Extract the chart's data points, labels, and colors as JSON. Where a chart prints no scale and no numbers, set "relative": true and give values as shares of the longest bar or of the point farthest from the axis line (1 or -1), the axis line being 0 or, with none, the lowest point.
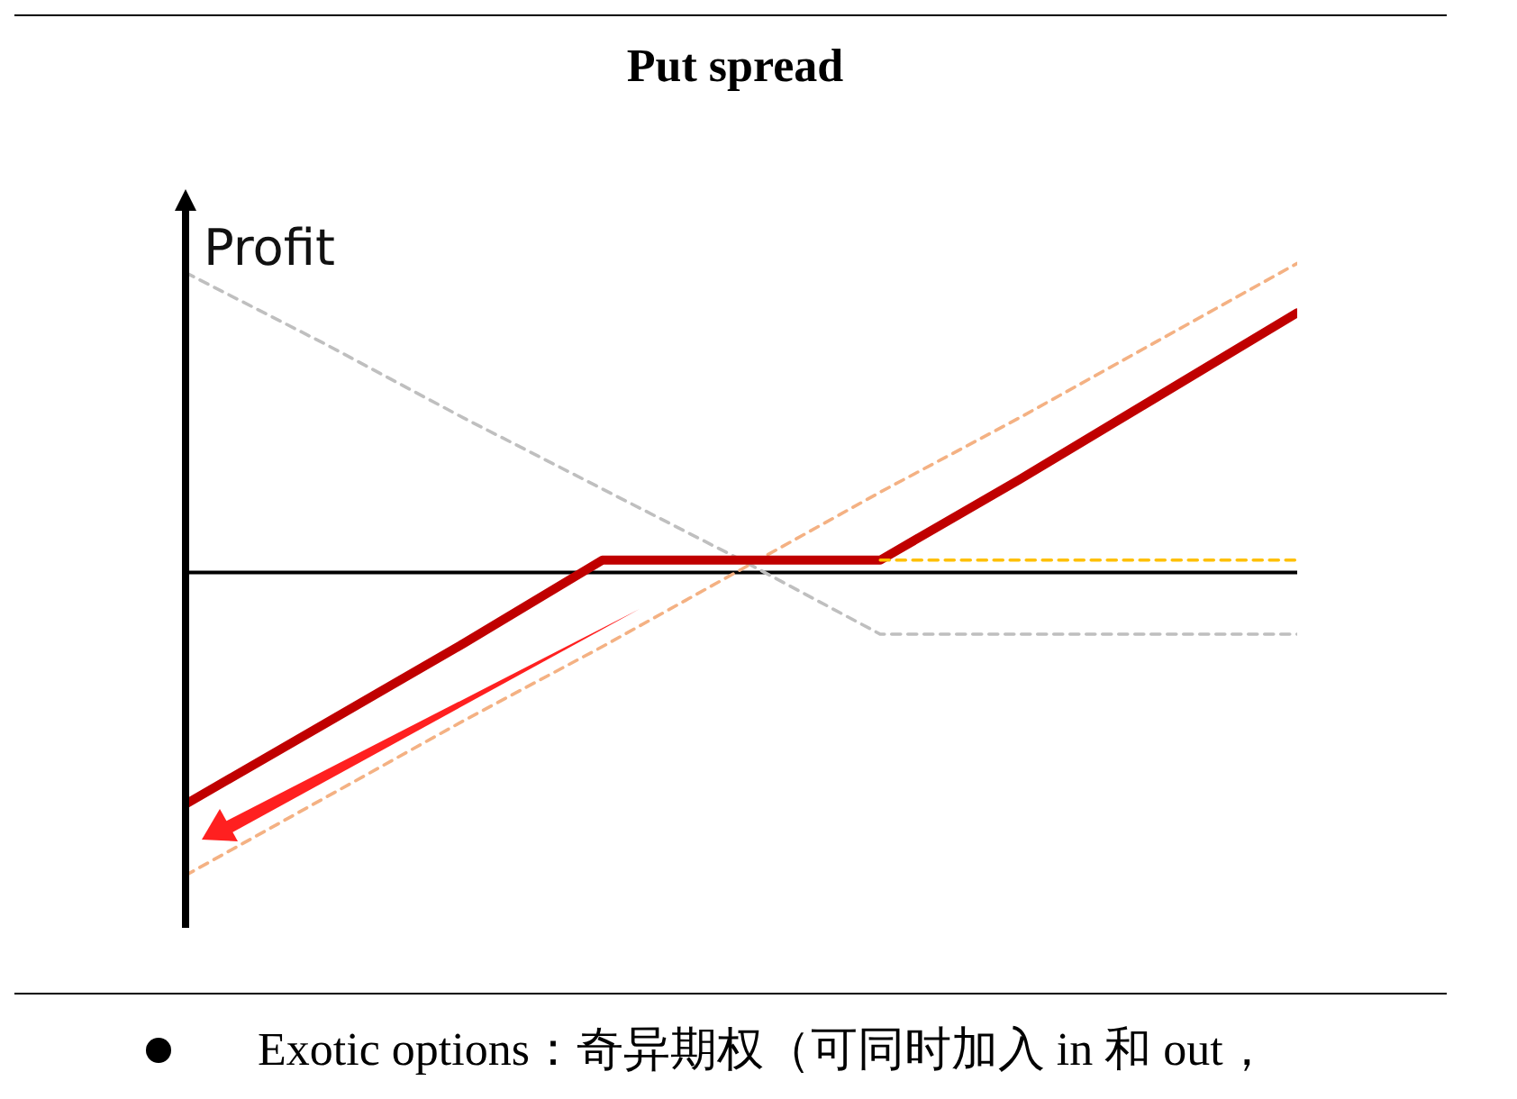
{
  "chart_data": {
    "type": "line",
    "title": "Put spread",
    "ylabel": "Profit",
    "relative": true,
    "categories": [
      null,
      null,
      null,
      null,
      null,
      null,
      null,
      null,
      null
    ],
    "series": [
      {
        "color": "#bfbfbf",
        "line_style": "dashed",
        "values": [
          0.97,
          0.74,
          0.5,
          0.27,
          0.04,
          -0.2,
          -0.2,
          -0.2,
          -0.2
        ]
      },
      {
        "color": "#f4b183",
        "line_style": "dashed",
        "values": [
          -0.98,
          -0.73,
          -0.48,
          -0.24,
          0.01,
          0.26,
          0.5,
          0.75,
          1
        ]
      },
      {
        "color": "#c00000",
        "line_style": "solid",
        "values": [
          -0.75,
          -0.49,
          -0.23,
          0.04,
          0.04,
          0.04,
          0.3,
          0.57,
          0.84
        ]
      },
      {
        "color": "#ffc000",
        "line_style": "dashed",
        "values": [
          null,
          null,
          null,
          null,
          null,
          0.04,
          0.04,
          0.04,
          0.04
        ]
      }
    ],
    "annotations": [
      "Exotic options：奇异期权（可同时加入 in 和 out，"
    ],
    "grid": false,
    "legend": false,
    "marker": "none"
  }
}
